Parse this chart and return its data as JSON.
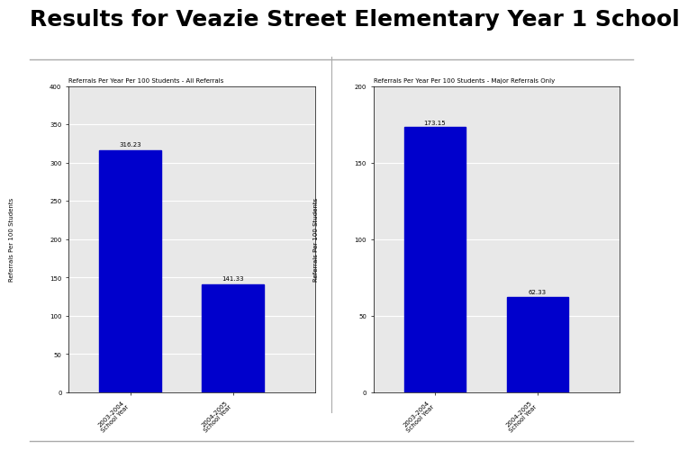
{
  "title": "Results for Veazie Street Elementary Year 1 School",
  "title_fontsize": 18,
  "title_fontweight": "bold",
  "background_color": "#ffffff",
  "chart_bg_color": "#e8e8e8",
  "bar_color": "#0000cc",
  "left_chart": {
    "subtitle": "Referrals Per Year Per 100 Students - All Referrals",
    "ylabel": "Referrals Per 100 Students",
    "categories": [
      "2003-2004\nSchool Year",
      "2004-2005\nSchool Year"
    ],
    "values": [
      316.23,
      141.33
    ],
    "ylim": [
      0,
      400
    ],
    "yticks": [
      0,
      50,
      100,
      150,
      200,
      250,
      300,
      350,
      400
    ],
    "bar_labels": [
      "316.23",
      "141.33"
    ]
  },
  "right_chart": {
    "subtitle": "Referrals Per Year Per 100 Students - Major Referrals Only",
    "ylabel": "Referrals Per 100 Students",
    "categories": [
      "2003-2004\nSchool Year",
      "2004-2005\nSchool Year"
    ],
    "values": [
      173.15,
      62.33
    ],
    "ylim": [
      0,
      200
    ],
    "yticks": [
      0,
      50,
      100,
      150,
      200
    ],
    "bar_labels": [
      "173.15",
      "62.33"
    ]
  }
}
